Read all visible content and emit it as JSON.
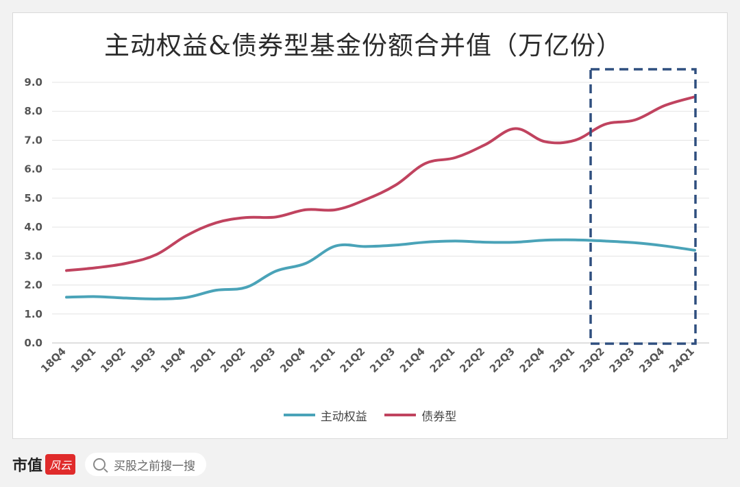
{
  "chart_data": {
    "type": "line",
    "title": "主动权益&债券型基金份额合并值（万亿份）",
    "categories": [
      "18Q4",
      "19Q1",
      "19Q2",
      "19Q3",
      "19Q4",
      "20Q1",
      "20Q2",
      "20Q3",
      "20Q4",
      "21Q1",
      "21Q2",
      "21Q3",
      "21Q4",
      "22Q1",
      "22Q2",
      "22Q3",
      "22Q4",
      "23Q1",
      "23Q2",
      "23Q3",
      "23Q4",
      "24Q1"
    ],
    "series": [
      {
        "name": "主动权益",
        "color": "#4aa3b8",
        "values": [
          1.58,
          1.6,
          1.55,
          1.52,
          1.57,
          1.82,
          1.92,
          2.48,
          2.75,
          3.35,
          3.33,
          3.38,
          3.48,
          3.52,
          3.48,
          3.48,
          3.55,
          3.56,
          3.52,
          3.46,
          3.35,
          3.2
        ]
      },
      {
        "name": "债券型",
        "color": "#c0435f",
        "values": [
          2.5,
          2.6,
          2.75,
          3.05,
          3.7,
          4.15,
          4.33,
          4.35,
          4.6,
          4.6,
          4.95,
          5.45,
          6.2,
          6.4,
          6.85,
          7.4,
          6.95,
          7.0,
          7.55,
          7.7,
          8.2,
          8.5
        ]
      }
    ],
    "ylim": [
      0,
      9
    ],
    "yticks": [
      "0.0",
      "1.0",
      "2.0",
      "3.0",
      "4.0",
      "5.0",
      "6.0",
      "7.0",
      "8.0",
      "9.0"
    ],
    "highlight": {
      "from": "23Q2",
      "to": "24Q1",
      "style": "dashed",
      "color": "#2f4f7f"
    },
    "legend_position": "bottom",
    "grid": true
  },
  "footer": {
    "brand": "市值",
    "logo_text": "风云",
    "search_placeholder": "买股之前搜一搜"
  }
}
